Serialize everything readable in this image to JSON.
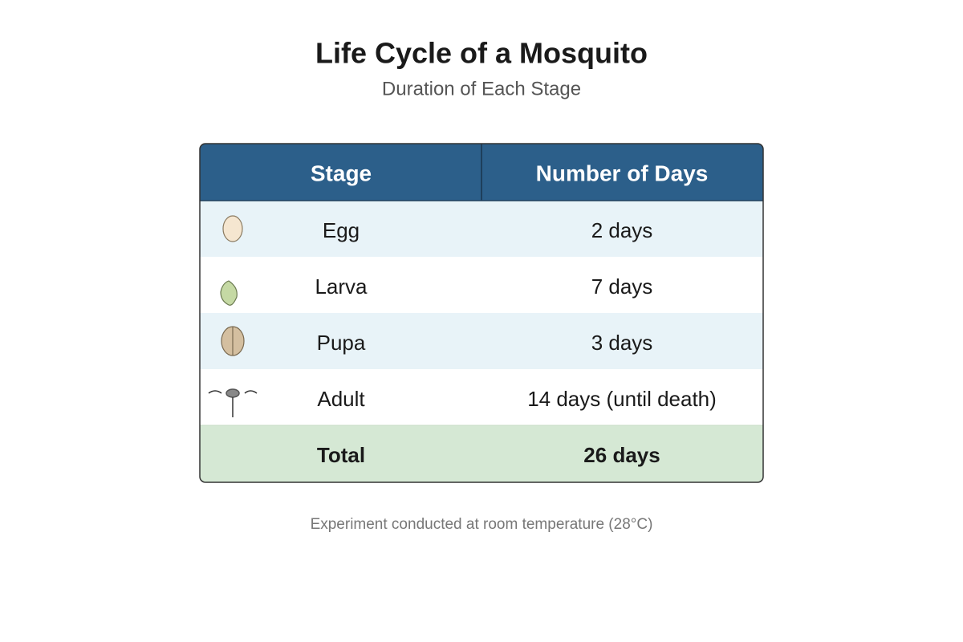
{
  "header": {
    "title": "Life Cycle of a Mosquito",
    "subtitle": "Duration of Each Stage"
  },
  "table": {
    "columns": [
      "Stage",
      "Number of Days"
    ],
    "rows": [
      [
        "Egg",
        "2 days"
      ],
      [
        "Larva",
        "7 days"
      ],
      [
        "Pupa",
        "3 days"
      ],
      [
        "Adult",
        "14 days (until death)"
      ]
    ],
    "total": [
      "Total",
      "26 days"
    ]
  },
  "footnote": "Experiment conducted at room temperature (28°C)"
}
